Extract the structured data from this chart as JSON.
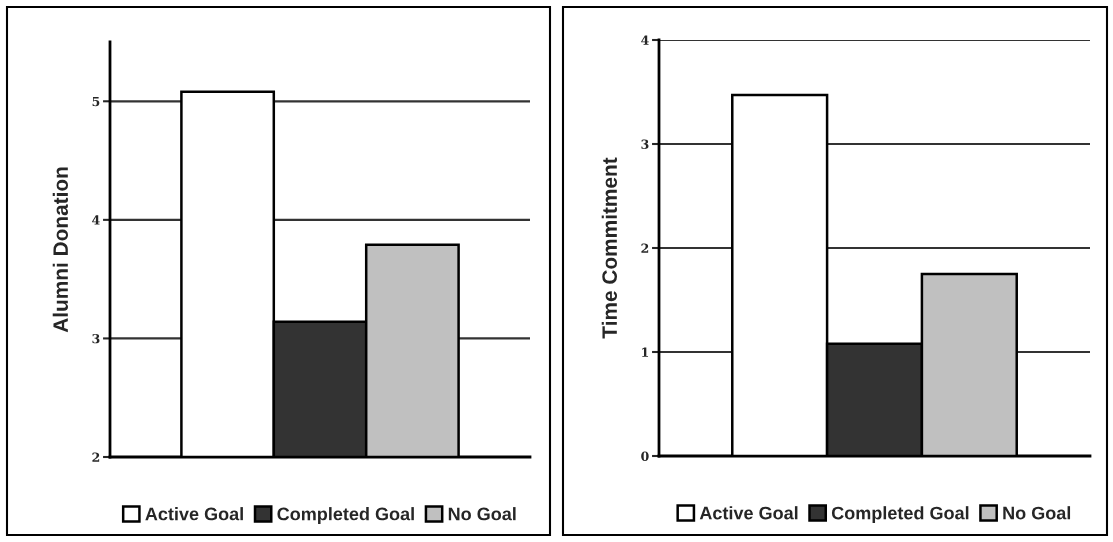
{
  "chart_data": [
    {
      "type": "bar",
      "ylabel": "Alumni Donation",
      "categories": [
        null
      ],
      "series": [
        {
          "name": "Active Goal",
          "color": "#ffffff",
          "values": [
            5.08
          ]
        },
        {
          "name": "Completed Goal",
          "color": "#333333",
          "values": [
            3.14
          ]
        },
        {
          "name": "No Goal",
          "color": "#c0c0c0",
          "values": [
            3.79
          ]
        }
      ],
      "ylim": [
        2,
        5.5
      ],
      "yticks": [
        2,
        3,
        4,
        5
      ],
      "grid": "y",
      "legend": "bottom"
    },
    {
      "type": "bar",
      "ylabel": "Time Commitment",
      "categories": [
        null
      ],
      "series": [
        {
          "name": "Active Goal",
          "color": "#ffffff",
          "values": [
            3.47
          ]
        },
        {
          "name": "Completed Goal",
          "color": "#333333",
          "values": [
            1.08
          ]
        },
        {
          "name": "No Goal",
          "color": "#c0c0c0",
          "values": [
            1.75
          ]
        }
      ],
      "ylim": [
        0,
        4
      ],
      "yticks": [
        0,
        1,
        2,
        3,
        4
      ],
      "grid": "y",
      "legend": "bottom"
    }
  ]
}
